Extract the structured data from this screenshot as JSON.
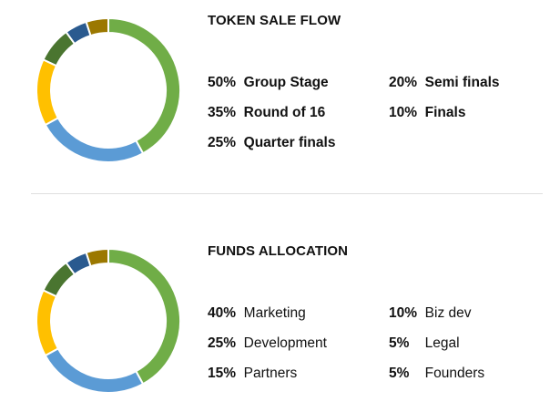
{
  "colors": {
    "green": "#70ad47",
    "blue": "#5b9bd5",
    "yellow": "#ffc000",
    "dark_green": "#4a7530",
    "navy": "#2a5a8f",
    "olive": "#9b7800",
    "text": "#111111",
    "divider": "#dedede"
  },
  "chart_data": [
    {
      "type": "pie",
      "title": "TOKEN SALE FLOW",
      "categories": [
        "Group Stage",
        "Round of 16",
        "Quarter finals",
        "Semi finals",
        "Finals"
      ],
      "values": [
        50,
        35,
        25,
        20,
        10
      ],
      "labels": [
        "50%",
        "35%",
        "25%",
        "20%",
        "10%"
      ],
      "legend": [
        {
          "pct": "50%",
          "label": "Group Stage",
          "column": 0,
          "row": 0
        },
        {
          "pct": "35%",
          "label": "Round of 16",
          "column": 0,
          "row": 1
        },
        {
          "pct": "25%",
          "label": "Quarter finals",
          "column": 0,
          "row": 2
        },
        {
          "pct": "20%",
          "label": "Semi finals",
          "column": 1,
          "row": 0
        },
        {
          "pct": "10%",
          "label": "Finals",
          "column": 1,
          "row": 1
        }
      ],
      "ring_order": [
        "green",
        "blue",
        "yellow",
        "dark_green",
        "navy",
        "olive"
      ],
      "ring_fractions": [
        0.42,
        0.25,
        0.15,
        0.08,
        0.05,
        0.05
      ],
      "legend_placement": "right"
    },
    {
      "type": "pie",
      "title": "FUNDS ALLOCATION",
      "categories": [
        "Marketing",
        "Development",
        "Partners",
        "Biz dev",
        "Legal",
        "Founders"
      ],
      "values": [
        40,
        25,
        15,
        10,
        5,
        5
      ],
      "labels": [
        "40%",
        "25%",
        "15%",
        "10%",
        "5%",
        "5%"
      ],
      "legend": [
        {
          "pct": "40%",
          "label": "Marketing",
          "column": 0,
          "row": 0
        },
        {
          "pct": "25%",
          "label": "Development",
          "column": 0,
          "row": 1
        },
        {
          "pct": "15%",
          "label": "Partners",
          "column": 0,
          "row": 2
        },
        {
          "pct": "10%",
          "label": "Biz dev",
          "column": 1,
          "row": 0
        },
        {
          "pct": "5%",
          "label": "Legal",
          "column": 1,
          "row": 1
        },
        {
          "pct": "5%",
          "label": "Founders",
          "column": 1,
          "row": 2
        }
      ],
      "ring_order": [
        "green",
        "blue",
        "yellow",
        "dark_green",
        "navy",
        "olive"
      ],
      "ring_fractions": [
        0.42,
        0.25,
        0.15,
        0.08,
        0.05,
        0.05
      ],
      "legend_placement": "right"
    }
  ]
}
